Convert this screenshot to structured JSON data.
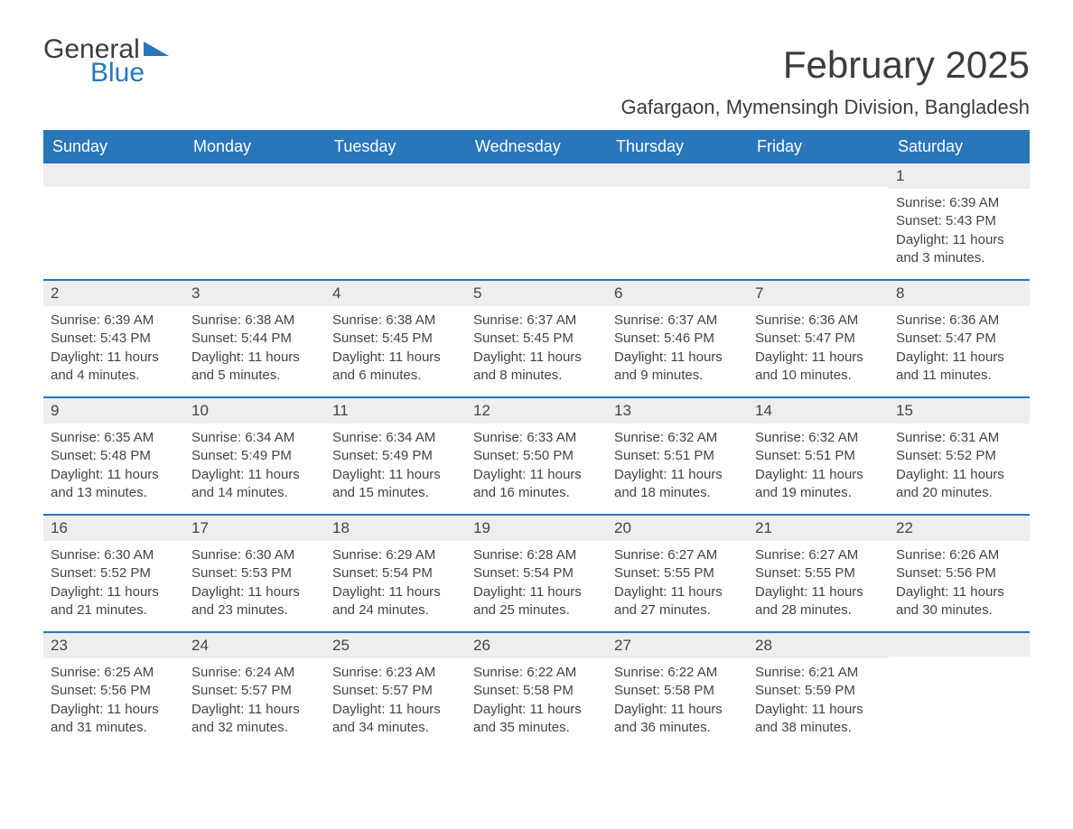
{
  "logo": {
    "text1": "General",
    "text2": "Blue",
    "accent_color": "#2976bb"
  },
  "title": "February 2025",
  "location": "Gafargaon, Mymensingh Division, Bangladesh",
  "colors": {
    "header_bg": "#2976bb",
    "header_text": "#ffffff",
    "daynum_bg": "#eeeeee",
    "text": "#444444",
    "week_divider": "#2976bb",
    "page_bg": "#ffffff"
  },
  "fonts": {
    "title_size_pt": 32,
    "location_size_pt": 17,
    "weekday_size_pt": 14,
    "body_size_pt": 11
  },
  "weekdays": [
    "Sunday",
    "Monday",
    "Tuesday",
    "Wednesday",
    "Thursday",
    "Friday",
    "Saturday"
  ],
  "weeks": [
    [
      {
        "day": null
      },
      {
        "day": null
      },
      {
        "day": null
      },
      {
        "day": null
      },
      {
        "day": null
      },
      {
        "day": null
      },
      {
        "day": "1",
        "sunrise": "Sunrise: 6:39 AM",
        "sunset": "Sunset: 5:43 PM",
        "daylight": "Daylight: 11 hours and 3 minutes."
      }
    ],
    [
      {
        "day": "2",
        "sunrise": "Sunrise: 6:39 AM",
        "sunset": "Sunset: 5:43 PM",
        "daylight": "Daylight: 11 hours and 4 minutes."
      },
      {
        "day": "3",
        "sunrise": "Sunrise: 6:38 AM",
        "sunset": "Sunset: 5:44 PM",
        "daylight": "Daylight: 11 hours and 5 minutes."
      },
      {
        "day": "4",
        "sunrise": "Sunrise: 6:38 AM",
        "sunset": "Sunset: 5:45 PM",
        "daylight": "Daylight: 11 hours and 6 minutes."
      },
      {
        "day": "5",
        "sunrise": "Sunrise: 6:37 AM",
        "sunset": "Sunset: 5:45 PM",
        "daylight": "Daylight: 11 hours and 8 minutes."
      },
      {
        "day": "6",
        "sunrise": "Sunrise: 6:37 AM",
        "sunset": "Sunset: 5:46 PM",
        "daylight": "Daylight: 11 hours and 9 minutes."
      },
      {
        "day": "7",
        "sunrise": "Sunrise: 6:36 AM",
        "sunset": "Sunset: 5:47 PM",
        "daylight": "Daylight: 11 hours and 10 minutes."
      },
      {
        "day": "8",
        "sunrise": "Sunrise: 6:36 AM",
        "sunset": "Sunset: 5:47 PM",
        "daylight": "Daylight: 11 hours and 11 minutes."
      }
    ],
    [
      {
        "day": "9",
        "sunrise": "Sunrise: 6:35 AM",
        "sunset": "Sunset: 5:48 PM",
        "daylight": "Daylight: 11 hours and 13 minutes."
      },
      {
        "day": "10",
        "sunrise": "Sunrise: 6:34 AM",
        "sunset": "Sunset: 5:49 PM",
        "daylight": "Daylight: 11 hours and 14 minutes."
      },
      {
        "day": "11",
        "sunrise": "Sunrise: 6:34 AM",
        "sunset": "Sunset: 5:49 PM",
        "daylight": "Daylight: 11 hours and 15 minutes."
      },
      {
        "day": "12",
        "sunrise": "Sunrise: 6:33 AM",
        "sunset": "Sunset: 5:50 PM",
        "daylight": "Daylight: 11 hours and 16 minutes."
      },
      {
        "day": "13",
        "sunrise": "Sunrise: 6:32 AM",
        "sunset": "Sunset: 5:51 PM",
        "daylight": "Daylight: 11 hours and 18 minutes."
      },
      {
        "day": "14",
        "sunrise": "Sunrise: 6:32 AM",
        "sunset": "Sunset: 5:51 PM",
        "daylight": "Daylight: 11 hours and 19 minutes."
      },
      {
        "day": "15",
        "sunrise": "Sunrise: 6:31 AM",
        "sunset": "Sunset: 5:52 PM",
        "daylight": "Daylight: 11 hours and 20 minutes."
      }
    ],
    [
      {
        "day": "16",
        "sunrise": "Sunrise: 6:30 AM",
        "sunset": "Sunset: 5:52 PM",
        "daylight": "Daylight: 11 hours and 21 minutes."
      },
      {
        "day": "17",
        "sunrise": "Sunrise: 6:30 AM",
        "sunset": "Sunset: 5:53 PM",
        "daylight": "Daylight: 11 hours and 23 minutes."
      },
      {
        "day": "18",
        "sunrise": "Sunrise: 6:29 AM",
        "sunset": "Sunset: 5:54 PM",
        "daylight": "Daylight: 11 hours and 24 minutes."
      },
      {
        "day": "19",
        "sunrise": "Sunrise: 6:28 AM",
        "sunset": "Sunset: 5:54 PM",
        "daylight": "Daylight: 11 hours and 25 minutes."
      },
      {
        "day": "20",
        "sunrise": "Sunrise: 6:27 AM",
        "sunset": "Sunset: 5:55 PM",
        "daylight": "Daylight: 11 hours and 27 minutes."
      },
      {
        "day": "21",
        "sunrise": "Sunrise: 6:27 AM",
        "sunset": "Sunset: 5:55 PM",
        "daylight": "Daylight: 11 hours and 28 minutes."
      },
      {
        "day": "22",
        "sunrise": "Sunrise: 6:26 AM",
        "sunset": "Sunset: 5:56 PM",
        "daylight": "Daylight: 11 hours and 30 minutes."
      }
    ],
    [
      {
        "day": "23",
        "sunrise": "Sunrise: 6:25 AM",
        "sunset": "Sunset: 5:56 PM",
        "daylight": "Daylight: 11 hours and 31 minutes."
      },
      {
        "day": "24",
        "sunrise": "Sunrise: 6:24 AM",
        "sunset": "Sunset: 5:57 PM",
        "daylight": "Daylight: 11 hours and 32 minutes."
      },
      {
        "day": "25",
        "sunrise": "Sunrise: 6:23 AM",
        "sunset": "Sunset: 5:57 PM",
        "daylight": "Daylight: 11 hours and 34 minutes."
      },
      {
        "day": "26",
        "sunrise": "Sunrise: 6:22 AM",
        "sunset": "Sunset: 5:58 PM",
        "daylight": "Daylight: 11 hours and 35 minutes."
      },
      {
        "day": "27",
        "sunrise": "Sunrise: 6:22 AM",
        "sunset": "Sunset: 5:58 PM",
        "daylight": "Daylight: 11 hours and 36 minutes."
      },
      {
        "day": "28",
        "sunrise": "Sunrise: 6:21 AM",
        "sunset": "Sunset: 5:59 PM",
        "daylight": "Daylight: 11 hours and 38 minutes."
      },
      {
        "day": null
      }
    ]
  ]
}
